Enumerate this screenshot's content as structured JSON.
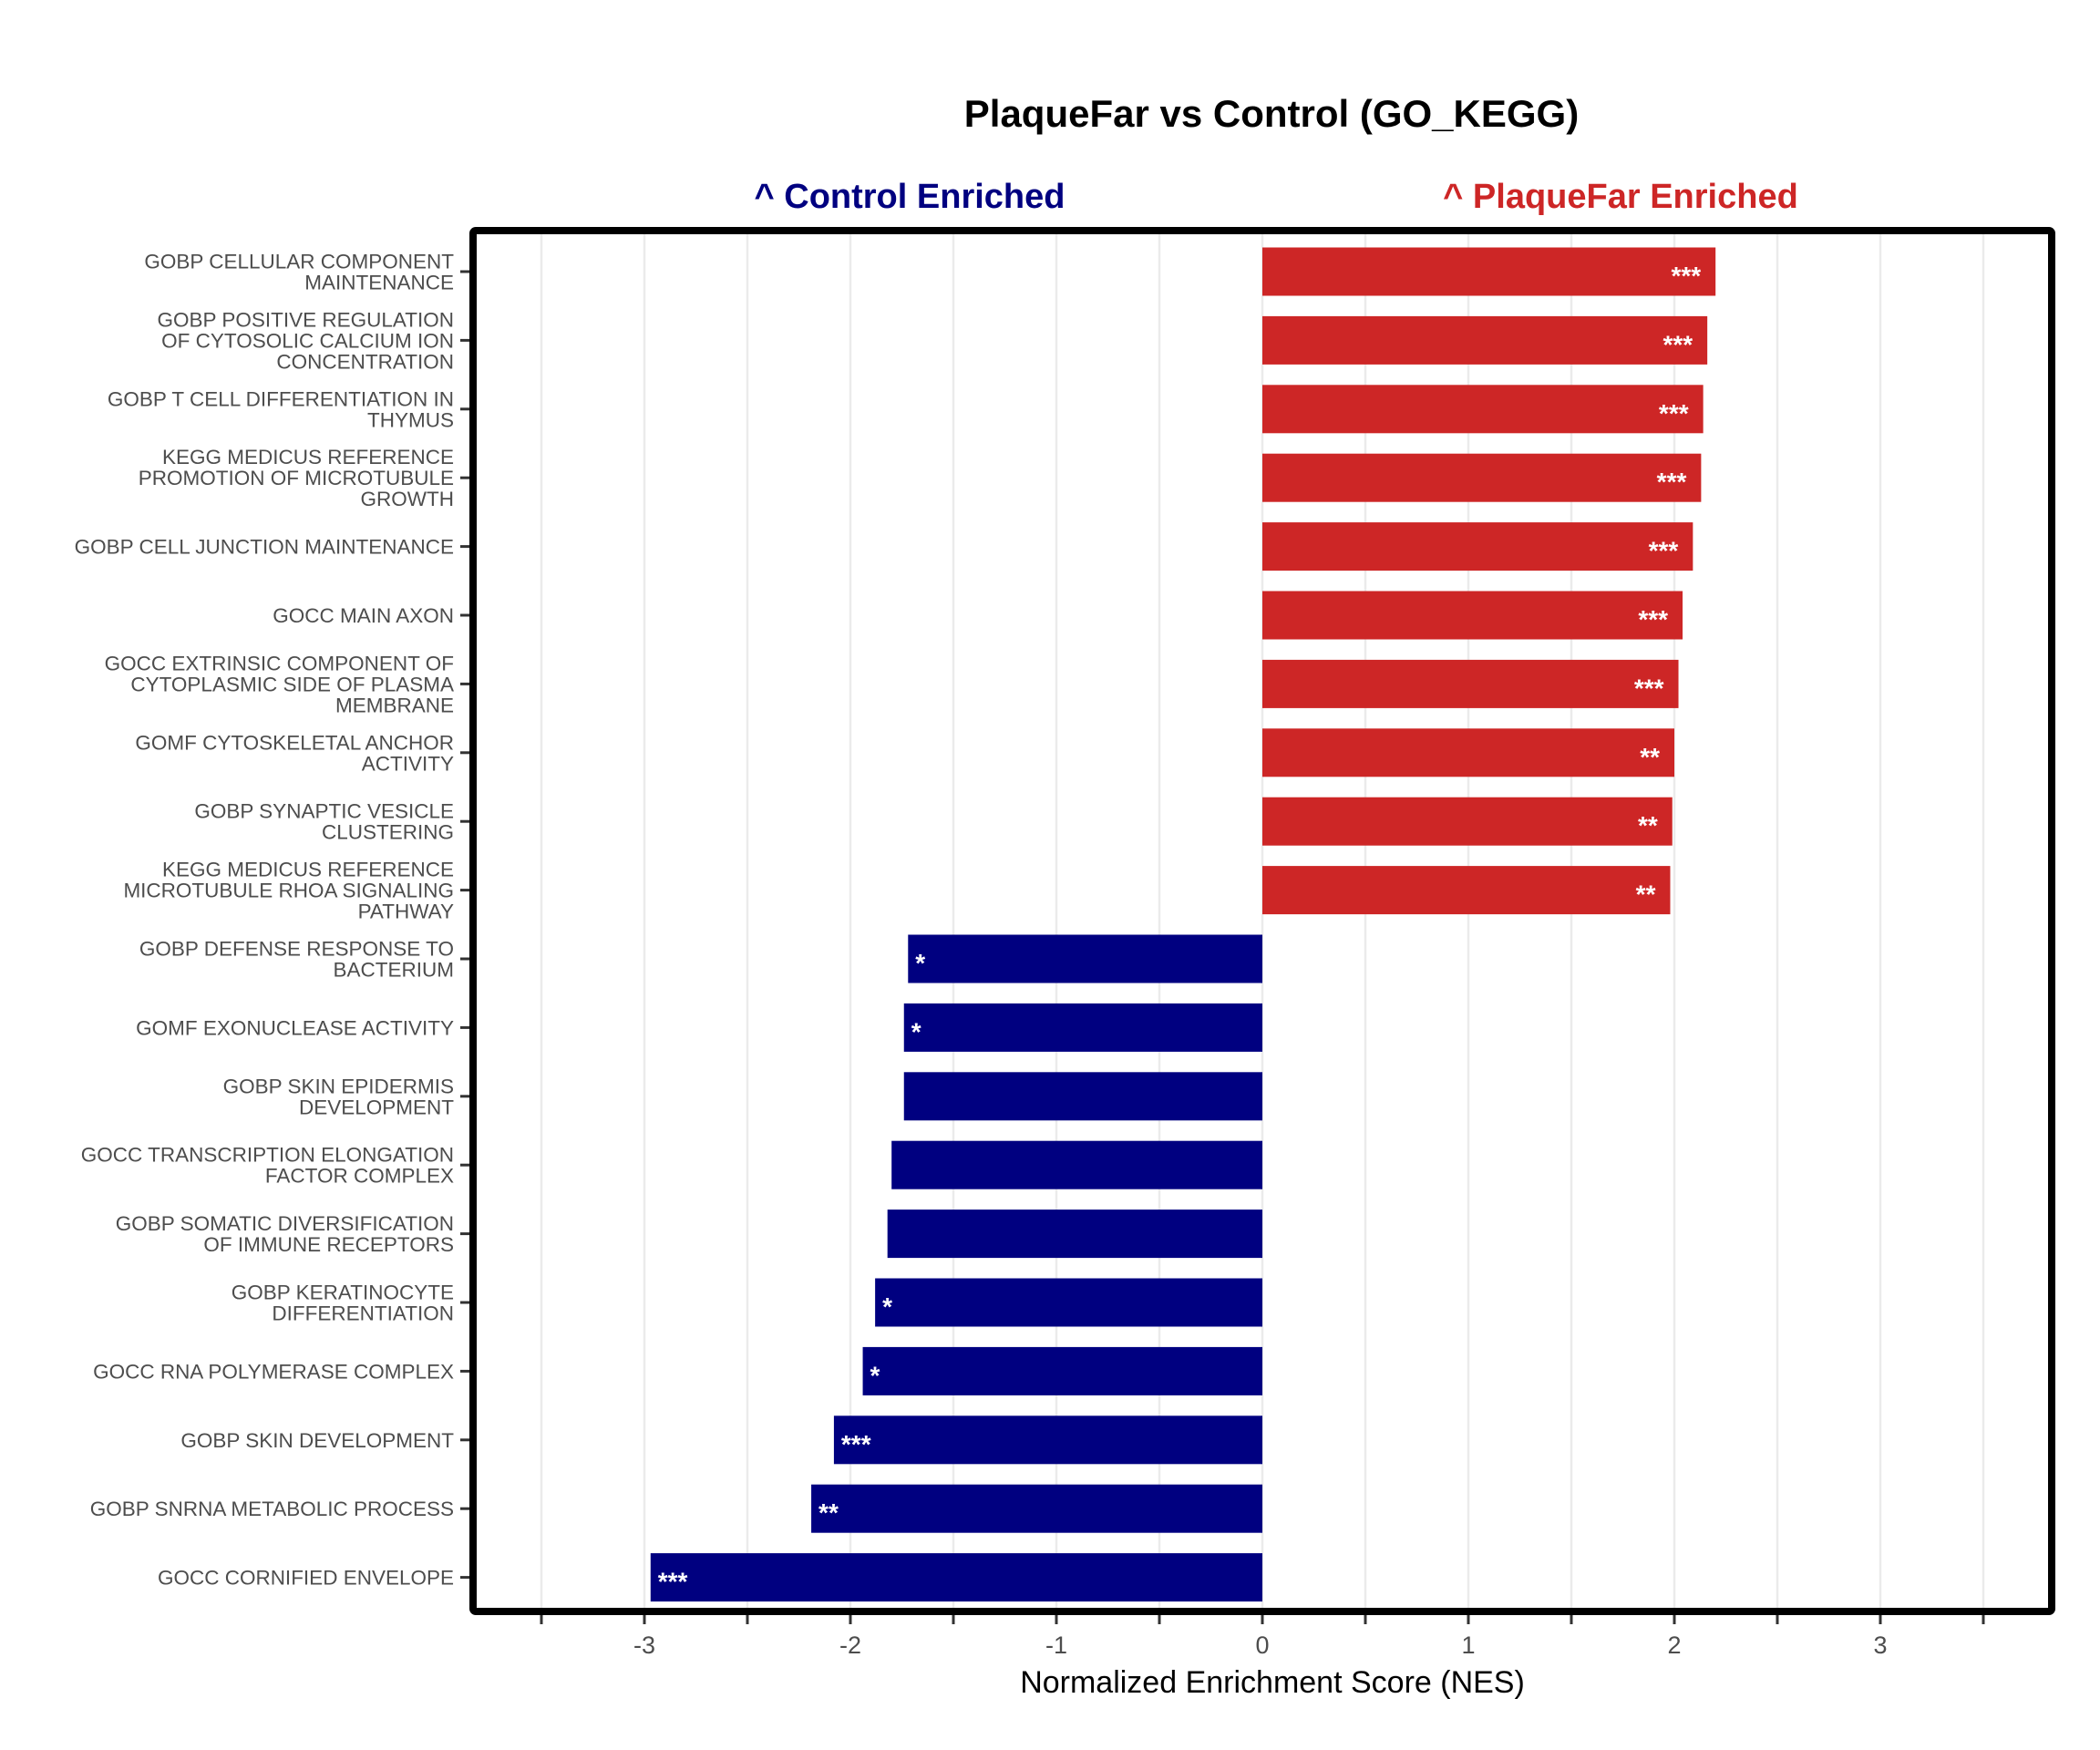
{
  "chart_data": {
    "type": "bar",
    "orientation": "horizontal",
    "title": "PlaqueFar vs Control (GO_KEGG)",
    "xlabel": "Normalized Enrichment Score (NES)",
    "ylabel": "",
    "xlim": [
      -3.5,
      3.5
    ],
    "xticks": [
      -3,
      -2,
      -1,
      0,
      1,
      2,
      3
    ],
    "grid": true,
    "side_labels": {
      "left": {
        "text": "^ Control Enriched",
        "color": "#000080"
      },
      "right": {
        "text": "^ PlaqueFar Enriched",
        "color": "#cd2626"
      }
    },
    "colors": {
      "positive": "#cd2626",
      "negative": "#000080"
    },
    "categories": [
      [
        "GOBP CELLULAR COMPONENT",
        "MAINTENANCE"
      ],
      [
        "GOBP POSITIVE REGULATION",
        "OF CYTOSOLIC CALCIUM ION",
        "CONCENTRATION"
      ],
      [
        "GOBP T CELL DIFFERENTIATION IN",
        "THYMUS"
      ],
      [
        "KEGG MEDICUS REFERENCE",
        "PROMOTION OF MICROTUBULE",
        "GROWTH"
      ],
      [
        "GOBP CELL JUNCTION MAINTENANCE"
      ],
      [
        "GOCC MAIN AXON"
      ],
      [
        "GOCC EXTRINSIC COMPONENT OF",
        "CYTOPLASMIC SIDE OF PLASMA",
        "MEMBRANE"
      ],
      [
        "GOMF CYTOSKELETAL ANCHOR",
        "ACTIVITY"
      ],
      [
        "GOBP SYNAPTIC VESICLE",
        "CLUSTERING"
      ],
      [
        "KEGG MEDICUS REFERENCE",
        "MICROTUBULE RHOA SIGNALING",
        "PATHWAY"
      ],
      [
        "GOBP DEFENSE RESPONSE TO",
        "BACTERIUM"
      ],
      [
        "GOMF EXONUCLEASE ACTIVITY"
      ],
      [
        "GOBP SKIN EPIDERMIS",
        "DEVELOPMENT"
      ],
      [
        "GOCC TRANSCRIPTION ELONGATION",
        "FACTOR COMPLEX"
      ],
      [
        "GOBP SOMATIC DIVERSIFICATION",
        "OF IMMUNE RECEPTORS"
      ],
      [
        "GOBP KERATINOCYTE",
        "DIFFERENTIATION"
      ],
      [
        "GOCC RNA POLYMERASE COMPLEX"
      ],
      [
        "GOBP SKIN DEVELOPMENT"
      ],
      [
        "GOBP SNRNA METABOLIC PROCESS"
      ],
      [
        "GOCC CORNIFIED ENVELOPE"
      ]
    ],
    "values": [
      2.2,
      2.16,
      2.14,
      2.13,
      2.09,
      2.04,
      2.02,
      2.0,
      1.99,
      1.98,
      -1.72,
      -1.74,
      -1.74,
      -1.8,
      -1.82,
      -1.88,
      -1.94,
      -2.08,
      -2.19,
      -2.97
    ],
    "significance": [
      "***",
      "***",
      "***",
      "***",
      "***",
      "***",
      "***",
      "**",
      "**",
      "**",
      "*",
      "*",
      "",
      "",
      "",
      "*",
      "*",
      "***",
      "**",
      "***"
    ]
  }
}
